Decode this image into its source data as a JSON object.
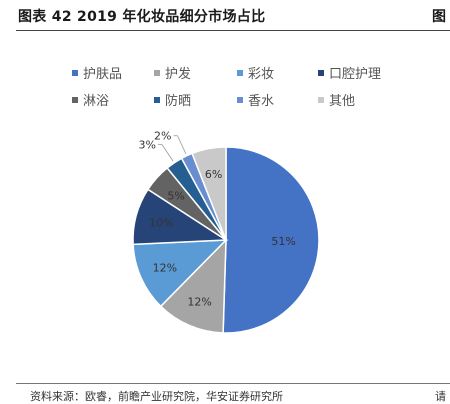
{
  "header": {
    "title": "图表 42 2019 年化妆品细分市场占比",
    "right_fragment": "图"
  },
  "footer": {
    "source": "资料来源：欧睿，前瞻产业研究院，华安证券研究所",
    "right_fragment": "请"
  },
  "chart_data": {
    "type": "pie",
    "title": "",
    "start_angle_deg": 0,
    "direction": "clockwise",
    "legend_position": "top",
    "slices": [
      {
        "name": "护肤品",
        "value": 51,
        "label": "51%",
        "color": "#4472C4"
      },
      {
        "name": "护发",
        "value": 12,
        "label": "12%",
        "color": "#A5A5A5"
      },
      {
        "name": "彩妆",
        "value": 12,
        "label": "12%",
        "color": "#5B9BD5"
      },
      {
        "name": "口腔护理",
        "value": 10,
        "label": "10%",
        "color": "#264478"
      },
      {
        "name": "淋浴",
        "value": 5,
        "label": "5%",
        "color": "#636363"
      },
      {
        "name": "防晒",
        "value": 3,
        "label": "3%",
        "color": "#255E91"
      },
      {
        "name": "香水",
        "value": 2,
        "label": "2%",
        "color": "#698ED0"
      },
      {
        "name": "其他",
        "value": 6,
        "label": "6%",
        "color": "#C9C9C9"
      }
    ]
  }
}
